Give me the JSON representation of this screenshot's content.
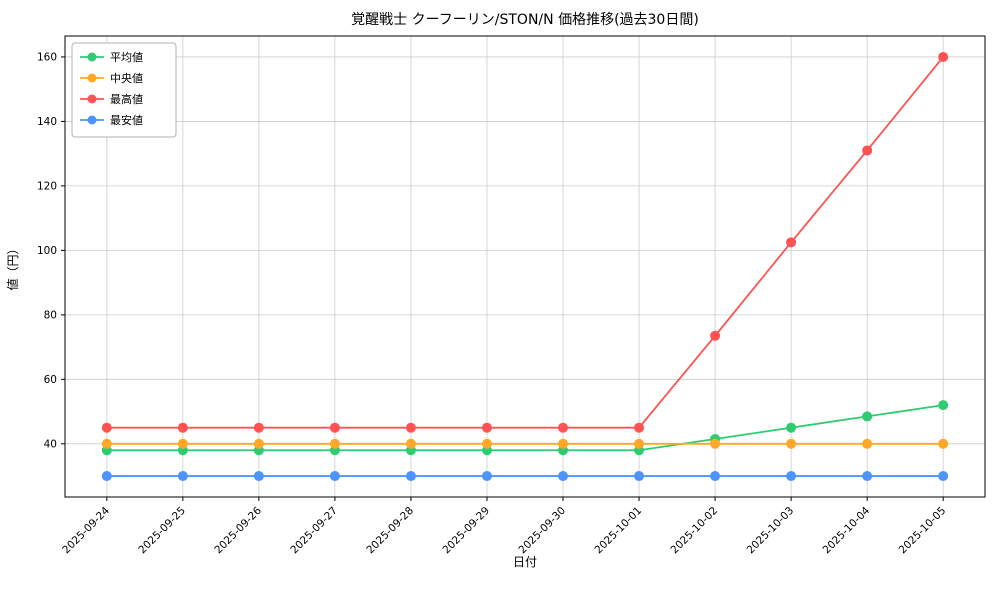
{
  "chart_data": {
    "type": "line",
    "title": "覚醒戦士 クーフーリン/STON/N 価格推移(過去30日間)",
    "xlabel": "日付",
    "ylabel": "値（円）",
    "x": [
      "2025-09-24",
      "2025-09-25",
      "2025-09-26",
      "2025-09-27",
      "2025-09-28",
      "2025-09-29",
      "2025-09-30",
      "2025-10-01",
      "2025-10-02",
      "2025-10-03",
      "2025-10-04",
      "2025-10-05"
    ],
    "yticks": [
      40,
      60,
      80,
      100,
      120,
      140,
      160
    ],
    "ylim": [
      23.5,
      166.5
    ],
    "grid": true,
    "legend_position": "upper left",
    "series": [
      {
        "key": "average",
        "name": "平均値",
        "color": "#2ecc71",
        "values": [
          38,
          38,
          38,
          38,
          38,
          38,
          38,
          38,
          41.5,
          45,
          48.5,
          52
        ]
      },
      {
        "key": "median",
        "name": "中央値",
        "color": "#ffa726",
        "values": [
          40,
          40,
          40,
          40,
          40,
          40,
          40,
          40,
          40,
          40,
          40,
          40
        ]
      },
      {
        "key": "max",
        "name": "最高値",
        "color": "#ff5252",
        "values": [
          45,
          45,
          45,
          45,
          45,
          45,
          45,
          45,
          73.5,
          102.5,
          131,
          160
        ]
      },
      {
        "key": "min",
        "name": "最安値",
        "color": "#4d94ff",
        "values": [
          30,
          30,
          30,
          30,
          30,
          30,
          30,
          30,
          30,
          30,
          30,
          30
        ]
      }
    ]
  }
}
